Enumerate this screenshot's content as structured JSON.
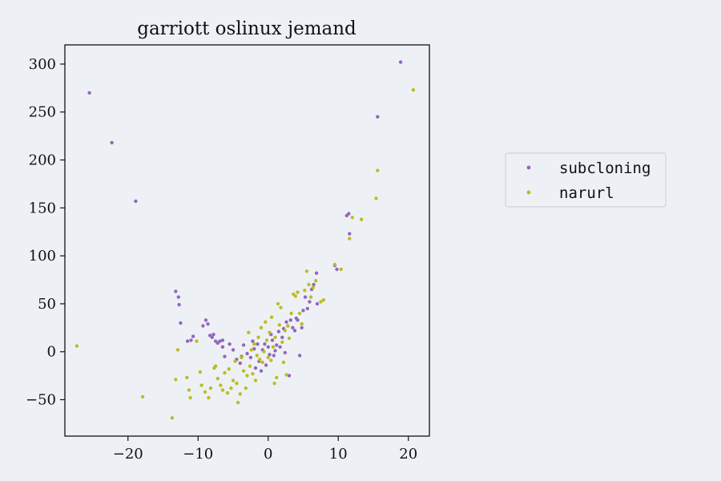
{
  "chart_data": {
    "type": "scatter",
    "title": "garriott oslinux jemand",
    "xlabel": "",
    "ylabel": "",
    "xlim": [
      -29,
      23
    ],
    "ylim": [
      -88,
      320
    ],
    "xticks": [
      -20,
      -10,
      0,
      10,
      20
    ],
    "yticks": [
      -50,
      0,
      50,
      100,
      150,
      200,
      250,
      300
    ],
    "xtick_labels": [
      "−20",
      "−10",
      "0",
      "10",
      "20"
    ],
    "ytick_labels": [
      "−50",
      "0",
      "50",
      "100",
      "150",
      "200",
      "250",
      "300"
    ],
    "grid": false,
    "legend_position": "right",
    "series": [
      {
        "name": "subcloning",
        "color": "#9467bd",
        "points": [
          [
            -25.5,
            270
          ],
          [
            -22.3,
            218
          ],
          [
            -18.9,
            157
          ],
          [
            -13.2,
            63
          ],
          [
            -12.8,
            57
          ],
          [
            -12.7,
            49
          ],
          [
            -12.5,
            30
          ],
          [
            -11.5,
            11
          ],
          [
            -11,
            12
          ],
          [
            -10.7,
            16
          ],
          [
            -9.3,
            27
          ],
          [
            -8.9,
            33
          ],
          [
            -8.6,
            29
          ],
          [
            -8.3,
            17
          ],
          [
            -8,
            15
          ],
          [
            -7.8,
            18
          ],
          [
            -7.5,
            11
          ],
          [
            -7.2,
            9
          ],
          [
            -6.9,
            11
          ],
          [
            -6.5,
            12
          ],
          [
            -6.5,
            5
          ],
          [
            -6.2,
            -5
          ],
          [
            -5.5,
            8
          ],
          [
            -5,
            2
          ],
          [
            -4.5,
            -8
          ],
          [
            -4,
            -12
          ],
          [
            -3.8,
            -5
          ],
          [
            -3.5,
            7
          ],
          [
            -3,
            -2
          ],
          [
            -2.5,
            -6
          ],
          [
            -2.2,
            11
          ],
          [
            -2,
            3
          ],
          [
            -1.8,
            -17
          ],
          [
            -1.5,
            8
          ],
          [
            -1.3,
            -10
          ],
          [
            -1,
            -20
          ],
          [
            -0.8,
            2
          ],
          [
            -0.5,
            8
          ],
          [
            -0.3,
            -14
          ],
          [
            0,
            5
          ],
          [
            0.2,
            -3
          ],
          [
            0.4,
            18
          ],
          [
            0.6,
            12
          ],
          [
            0.8,
            -4
          ],
          [
            1,
            1
          ],
          [
            1.2,
            7
          ],
          [
            1.5,
            21
          ],
          [
            1.7,
            5
          ],
          [
            2,
            15
          ],
          [
            2.2,
            24
          ],
          [
            2.4,
            -1
          ],
          [
            2.6,
            31
          ],
          [
            2.8,
            27
          ],
          [
            3,
            -25
          ],
          [
            3.2,
            33
          ],
          [
            3.5,
            25
          ],
          [
            3.8,
            22
          ],
          [
            4,
            35
          ],
          [
            4.2,
            33
          ],
          [
            4.5,
            -4
          ],
          [
            4.8,
            25
          ],
          [
            5,
            43
          ],
          [
            5.3,
            57
          ],
          [
            5.6,
            45
          ],
          [
            5.9,
            52
          ],
          [
            6.2,
            65
          ],
          [
            6.5,
            70
          ],
          [
            6.9,
            82
          ],
          [
            7,
            50
          ],
          [
            9.5,
            90
          ],
          [
            9.8,
            86
          ],
          [
            11.2,
            142
          ],
          [
            11.5,
            144
          ],
          [
            11.6,
            123
          ],
          [
            15.6,
            245
          ],
          [
            18.9,
            302
          ]
        ]
      },
      {
        "name": "narurl",
        "color": "#bcbd22",
        "points": [
          [
            -27.3,
            6
          ],
          [
            -17.9,
            -47
          ],
          [
            -13.7,
            -69
          ],
          [
            -13.2,
            -29
          ],
          [
            -12.9,
            2
          ],
          [
            -11.6,
            -27
          ],
          [
            -11.3,
            -40
          ],
          [
            -11.1,
            -48
          ],
          [
            -10.2,
            11
          ],
          [
            -9.7,
            -21
          ],
          [
            -9.5,
            -35
          ],
          [
            -9,
            -42
          ],
          [
            -8.5,
            -48
          ],
          [
            -8.2,
            -38
          ],
          [
            -7.7,
            -17
          ],
          [
            -7.5,
            -15
          ],
          [
            -7.2,
            -28
          ],
          [
            -6.8,
            -35
          ],
          [
            -6.5,
            -40
          ],
          [
            -6.2,
            -22
          ],
          [
            -5.8,
            -43
          ],
          [
            -5.6,
            -18
          ],
          [
            -5.3,
            -38
          ],
          [
            -5,
            -30
          ],
          [
            -4.7,
            -10
          ],
          [
            -4.5,
            -33
          ],
          [
            -4.3,
            -53
          ],
          [
            -4,
            -44
          ],
          [
            -3.8,
            -6
          ],
          [
            -3.5,
            -20
          ],
          [
            -3.2,
            -38
          ],
          [
            -3,
            -25
          ],
          [
            -2.8,
            20
          ],
          [
            -2.6,
            -15
          ],
          [
            -2.4,
            2
          ],
          [
            -2.2,
            -23
          ],
          [
            -2,
            8
          ],
          [
            -1.8,
            -30
          ],
          [
            -1.6,
            -4
          ],
          [
            -1.4,
            15
          ],
          [
            -1.2,
            -8
          ],
          [
            -1,
            25
          ],
          [
            -0.8,
            -11
          ],
          [
            -0.6,
            0
          ],
          [
            -0.4,
            31
          ],
          [
            -0.2,
            12
          ],
          [
            0,
            -6
          ],
          [
            0.2,
            20
          ],
          [
            0.4,
            -9
          ],
          [
            0.5,
            36
          ],
          [
            0.7,
            5
          ],
          [
            0.9,
            -33
          ],
          [
            1,
            15
          ],
          [
            1.2,
            -27
          ],
          [
            1.4,
            50
          ],
          [
            1.6,
            28
          ],
          [
            1.8,
            46
          ],
          [
            2,
            10
          ],
          [
            2.2,
            -11
          ],
          [
            2.4,
            22
          ],
          [
            2.6,
            -24
          ],
          [
            2.8,
            27
          ],
          [
            3,
            14
          ],
          [
            3.3,
            40
          ],
          [
            3.6,
            60
          ],
          [
            3.9,
            58
          ],
          [
            4.2,
            62
          ],
          [
            4.5,
            40
          ],
          [
            4.8,
            29
          ],
          [
            5.2,
            64
          ],
          [
            5.5,
            84
          ],
          [
            5.8,
            70
          ],
          [
            6.1,
            57
          ],
          [
            6.4,
            67
          ],
          [
            6.8,
            74
          ],
          [
            7.5,
            52
          ],
          [
            7.9,
            54
          ],
          [
            9.5,
            91
          ],
          [
            10.4,
            86
          ],
          [
            11.6,
            118
          ],
          [
            12,
            140
          ],
          [
            13.3,
            138
          ],
          [
            15.4,
            160
          ],
          [
            15.6,
            189
          ],
          [
            20.7,
            273
          ]
        ]
      }
    ]
  }
}
